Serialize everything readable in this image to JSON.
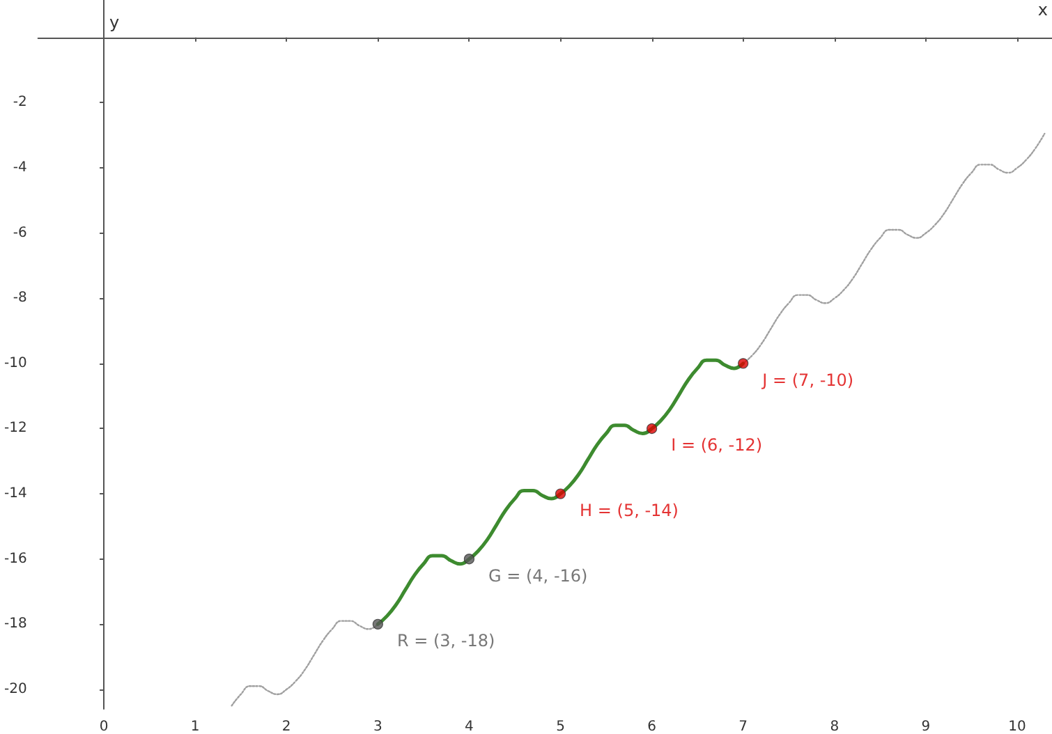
{
  "chart_data": {
    "type": "line",
    "xlabel": "x",
    "ylabel": "y",
    "xlim": [
      -0.72,
      10.38
    ],
    "ylim": [
      -20.6,
      1.15
    ],
    "xticks": [
      0,
      1,
      2,
      3,
      4,
      5,
      6,
      7,
      8,
      9,
      10
    ],
    "yticks": [
      {
        "value": 0,
        "label": null
      },
      -2,
      -4,
      -6,
      -8,
      -10,
      -12,
      -14,
      -16,
      -18,
      -20
    ],
    "series": [
      {
        "type": "line",
        "color": "#a0a0a0",
        "line_style": "dotted",
        "marker": "none",
        "x": [
          1.4,
          1.5,
          1.6,
          1.7,
          1.8,
          1.9,
          2,
          2.1,
          2.2,
          2.3,
          2.4,
          2.5,
          2.6,
          2.7,
          2.8,
          2.9,
          3,
          5,
          7,
          7.1,
          7.2,
          7.3,
          7.4,
          7.5,
          7.6,
          7.7,
          7.8,
          7.9,
          8,
          8.1,
          8.2,
          8.3,
          8.4,
          8.5,
          8.6,
          8.7,
          8.8,
          8.9,
          9,
          9.1,
          9.2,
          9.3,
          9.4,
          9.5,
          9.6,
          9.7,
          9.8,
          9.9,
          10,
          10.1,
          10.2,
          10.3
        ],
        "values": [
          -20.5,
          -20.15,
          -19.9,
          -19.9,
          -20.05,
          -20.15,
          -20,
          -19.75,
          -19.4,
          -18.95,
          -18.5,
          -18.15,
          -17.9,
          -17.9,
          -18.05,
          -18.15,
          -18,
          null,
          -10,
          -9.75,
          -9.4,
          -8.95,
          -8.5,
          -8.15,
          -7.9,
          -7.9,
          -8.05,
          -8.15,
          -8,
          -7.75,
          -7.4,
          -6.95,
          -6.5,
          -6.15,
          -5.9,
          -5.9,
          -6.05,
          -6.15,
          -6,
          -5.75,
          -5.4,
          -4.95,
          -4.5,
          -4.15,
          -3.9,
          -3.9,
          -4.05,
          -4.15,
          -4,
          -3.75,
          -3.4,
          -2.95
        ]
      },
      {
        "type": "line",
        "color": "#3d8b2f",
        "line_style": "solid",
        "marker": "none",
        "x": [
          3,
          3.1,
          3.2,
          3.3,
          3.4,
          3.5,
          3.6,
          3.7,
          3.8,
          3.9,
          4,
          4.1,
          4.2,
          4.3,
          4.4,
          4.5,
          4.6,
          4.7,
          4.8,
          4.9,
          5,
          5.1,
          5.2,
          5.3,
          5.4,
          5.5,
          5.6,
          5.7,
          5.8,
          5.9,
          6,
          6.1,
          6.2,
          6.3,
          6.4,
          6.5,
          6.6,
          6.7,
          6.8,
          6.9,
          7
        ],
        "values": [
          -18,
          -17.75,
          -17.4,
          -16.95,
          -16.5,
          -16.15,
          -15.9,
          -15.9,
          -16.05,
          -16.15,
          -16,
          -15.75,
          -15.4,
          -14.95,
          -14.5,
          -14.15,
          -13.9,
          -13.9,
          -14.05,
          -14.15,
          -14,
          -13.75,
          -13.4,
          -12.95,
          -12.5,
          -12.15,
          -11.9,
          -11.9,
          -12.05,
          -12.15,
          -12,
          -11.75,
          -11.4,
          -10.95,
          -10.5,
          -10.15,
          -9.9,
          -9.9,
          -10.05,
          -10.15,
          -10
        ]
      },
      {
        "type": "scatter",
        "color": "#555555",
        "marker": "circle",
        "x": [
          3,
          4
        ],
        "values": [
          -18,
          -16
        ],
        "value_labels": [
          "R = (3, -18)",
          "G = (4, -16)"
        ]
      },
      {
        "type": "scatter",
        "color": "#dd0000",
        "marker": "circle",
        "x": [
          5,
          6,
          7
        ],
        "values": [
          -14,
          -12,
          -10
        ],
        "value_labels": [
          "H = (5, -14)",
          "I = (6, -12)",
          "J = (7, -10)"
        ]
      }
    ]
  }
}
